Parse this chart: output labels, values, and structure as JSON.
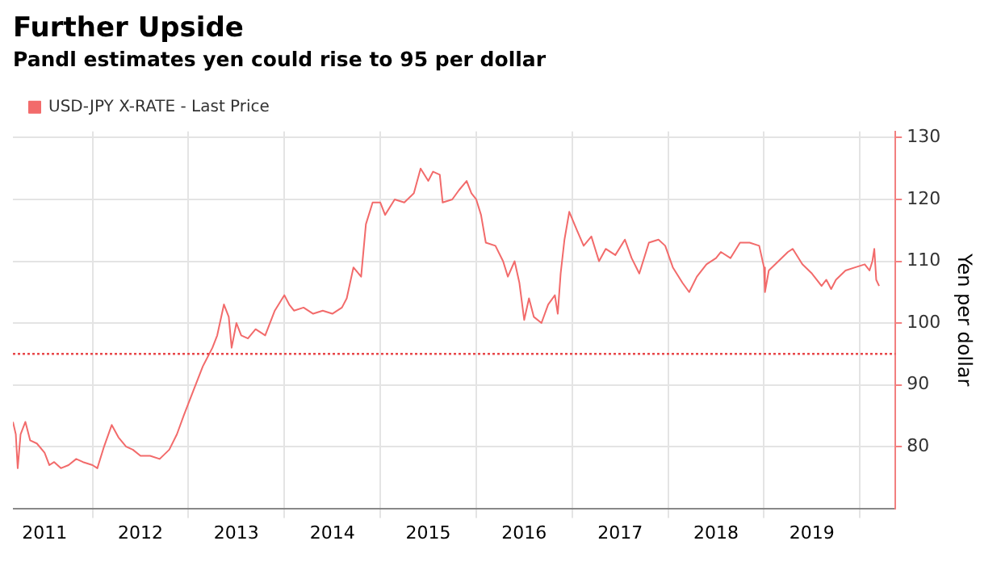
{
  "chart_data": {
    "type": "line",
    "title": "Further Upside",
    "subtitle": "Pandl estimates yen could rise to 95 per dollar",
    "ylabel": "Yen per dollar",
    "x": [
      2011.17,
      2011.2,
      2011.22,
      2011.25,
      2011.3,
      2011.35,
      2011.42,
      2011.5,
      2011.55,
      2011.6,
      2011.67,
      2011.75,
      2011.83,
      2011.9,
      2012.0,
      2012.05,
      2012.12,
      2012.2,
      2012.27,
      2012.35,
      2012.42,
      2012.5,
      2012.6,
      2012.7,
      2012.8,
      2012.88,
      2012.95,
      2013.05,
      2013.15,
      2013.25,
      2013.3,
      2013.37,
      2013.42,
      2013.45,
      2013.5,
      2013.55,
      2013.62,
      2013.7,
      2013.8,
      2013.9,
      2014.0,
      2014.05,
      2014.1,
      2014.2,
      2014.3,
      2014.4,
      2014.5,
      2014.6,
      2014.65,
      2014.72,
      2014.8,
      2014.85,
      2014.92,
      2015.0,
      2015.05,
      2015.15,
      2015.25,
      2015.35,
      2015.42,
      2015.5,
      2015.55,
      2015.62,
      2015.65,
      2015.75,
      2015.82,
      2015.9,
      2015.95,
      2016.0,
      2016.05,
      2016.1,
      2016.2,
      2016.28,
      2016.33,
      2016.4,
      2016.45,
      2016.5,
      2016.55,
      2016.6,
      2016.68,
      2016.75,
      2016.82,
      2016.85,
      2016.88,
      2016.92,
      2016.97,
      2017.05,
      2017.12,
      2017.2,
      2017.28,
      2017.35,
      2017.45,
      2017.55,
      2017.62,
      2017.7,
      2017.8,
      2017.9,
      2017.97,
      2018.05,
      2018.15,
      2018.22,
      2018.3,
      2018.4,
      2018.5,
      2018.55,
      2018.65,
      2018.75,
      2018.85,
      2018.95,
      2019.0,
      2019.01,
      2019.05,
      2019.15,
      2019.25,
      2019.3,
      2019.4,
      2019.5,
      2019.6,
      2019.65,
      2019.7,
      2019.75,
      2019.85,
      2019.95,
      2020.05,
      2020.1,
      2020.13,
      2020.15,
      2020.17,
      2020.2
    ],
    "series": [
      {
        "name": "USD-JPY X-RATE - Last Price",
        "color": "#f26b6b",
        "values": [
          84,
          82,
          76.5,
          82,
          84,
          81,
          80.5,
          79,
          77,
          77.5,
          76.5,
          77,
          78,
          77.5,
          77,
          76.5,
          80,
          83.5,
          81.5,
          80,
          79.5,
          78.5,
          78.5,
          78,
          79.5,
          82,
          85,
          89,
          93,
          96,
          98,
          103,
          101,
          96,
          100,
          98,
          97.5,
          99,
          98,
          102,
          104.5,
          103,
          102,
          102.5,
          101.5,
          102,
          101.5,
          102.5,
          104,
          109,
          107.5,
          116,
          119.5,
          119.5,
          117.5,
          120,
          119.5,
          121,
          125,
          123,
          124.5,
          124,
          119.5,
          120,
          121.5,
          123,
          121,
          120,
          117.5,
          113,
          112.5,
          110,
          107.5,
          110,
          106.5,
          100.5,
          104,
          101,
          100,
          103,
          104.5,
          101.5,
          108,
          113.5,
          118,
          115,
          112.5,
          114,
          110,
          112,
          111,
          113.5,
          110.5,
          108,
          113,
          113.5,
          112.5,
          109,
          106.5,
          105,
          107.5,
          109.5,
          110.5,
          111.5,
          110.5,
          113,
          113,
          112.5,
          109,
          105,
          108.5,
          110,
          111.5,
          112,
          109.5,
          108,
          106,
          107,
          105.5,
          107,
          108.5,
          109,
          109.5,
          108.5,
          110,
          112,
          107,
          106
        ]
      }
    ],
    "xlim": [
      2011.17,
      2020.37
    ],
    "xticks": [
      {
        "value": 2011.5,
        "label": "2011"
      },
      {
        "value": 2012,
        "label": null
      },
      {
        "value": 2012.5,
        "label": "2012"
      },
      {
        "value": 2013,
        "label": null
      },
      {
        "value": 2013.5,
        "label": "2013"
      },
      {
        "value": 2014,
        "label": null
      },
      {
        "value": 2014.5,
        "label": "2014"
      },
      {
        "value": 2015,
        "label": null
      },
      {
        "value": 2015.5,
        "label": "2015"
      },
      {
        "value": 2016,
        "label": null
      },
      {
        "value": 2016.5,
        "label": "2016"
      },
      {
        "value": 2017,
        "label": null
      },
      {
        "value": 2017.5,
        "label": "2017"
      },
      {
        "value": 2018,
        "label": null
      },
      {
        "value": 2018.5,
        "label": "2018"
      },
      {
        "value": 2019,
        "label": null
      },
      {
        "value": 2019.5,
        "label": "2019"
      },
      {
        "value": 2020,
        "label": null
      }
    ],
    "ylim": [
      70,
      131
    ],
    "yticks": [
      80,
      90,
      100,
      110,
      120,
      130
    ],
    "ref_lines": [
      {
        "axis": "y",
        "value": 95,
        "color": "#e8484a",
        "line_style": "dotted"
      }
    ],
    "grid": true,
    "legend": "top left",
    "marker": "none",
    "line_style": "solid"
  }
}
